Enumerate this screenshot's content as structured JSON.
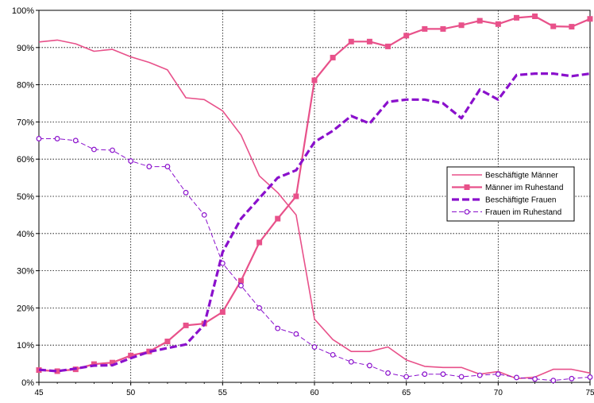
{
  "chart_data": {
    "type": "line",
    "title": "",
    "xlabel": "",
    "ylabel": "",
    "xlim": [
      45,
      75
    ],
    "ylim": [
      0,
      100
    ],
    "x_ticks": [
      "45",
      "50",
      "55",
      "60",
      "65",
      "70",
      "75"
    ],
    "y_ticks": [
      "0%",
      "10%",
      "20%",
      "30%",
      "40%",
      "50%",
      "60%",
      "70%",
      "80%",
      "90%",
      "100%"
    ],
    "grid": "dotted",
    "legend_position": "right",
    "x": [
      45,
      46,
      47,
      48,
      49,
      50,
      51,
      52,
      53,
      54,
      55,
      56,
      57,
      58,
      59,
      60,
      61,
      62,
      63,
      64,
      65,
      66,
      67,
      68,
      69,
      70,
      71,
      72,
      73,
      74,
      75
    ],
    "series": [
      {
        "name": "Beschäftigte Männer",
        "color": "#E8518A",
        "style": "solid-thin",
        "marker": "none",
        "values": [
          91.5,
          92,
          91,
          89,
          89.5,
          87.5,
          86,
          84,
          76.5,
          76,
          73,
          66.5,
          55.5,
          51,
          45,
          17,
          11.5,
          8.3,
          8.3,
          9.5,
          6,
          4.3,
          4,
          4,
          2.2,
          2.9,
          1,
          1.4,
          3.5,
          3.5,
          2.5
        ]
      },
      {
        "name": "Männer im Ruhestand",
        "color": "#E8518A",
        "style": "solid",
        "marker": "square",
        "values": [
          3.3,
          3,
          3.5,
          4.9,
          5.3,
          7.2,
          8.3,
          11,
          15.3,
          15.8,
          18.9,
          27.3,
          37.6,
          44,
          50,
          81.2,
          87.3,
          91.6,
          91.6,
          90.3,
          93.2,
          95,
          95,
          96,
          97.2,
          96.3,
          98,
          98.4,
          95.7,
          95.6,
          97.7
        ]
      },
      {
        "name": "Beschäftigte Frauen",
        "color": "#8A10CC",
        "style": "dashed-thick",
        "marker": "none",
        "values": [
          3.4,
          3,
          3.7,
          4.5,
          4.6,
          6.5,
          8.2,
          9.2,
          10.2,
          15.5,
          35,
          44,
          49.5,
          55,
          57,
          64.6,
          67.6,
          71.6,
          69.6,
          75.4,
          76,
          76,
          75,
          71,
          78.7,
          76,
          82.6,
          83,
          83,
          82.3,
          83
        ]
      },
      {
        "name": "Frauen im Ruhestand",
        "color": "#8A10CC",
        "style": "dashed-thin",
        "marker": "circle",
        "values": [
          65.5,
          65.5,
          65,
          62.6,
          62.4,
          59.5,
          58,
          58,
          51,
          45,
          32,
          26,
          20,
          14.5,
          13,
          9.5,
          7.4,
          5.5,
          4.5,
          2.5,
          1.5,
          2.2,
          2.2,
          1.5,
          1.9,
          2.2,
          1.3,
          0.9,
          0.5,
          1,
          1.4
        ]
      }
    ]
  }
}
